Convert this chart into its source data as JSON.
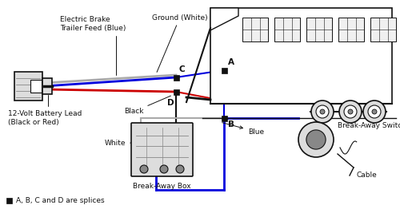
{
  "background_color": "#ffffff",
  "colors": {
    "blue": "#0000dd",
    "red": "#cc0000",
    "black": "#111111",
    "gray": "#888888",
    "light_gray": "#dddddd",
    "white_wire": "#aaaaaa"
  },
  "labels": {
    "electric_brake": "Electric Brake\nTrailer Feed (Blue)",
    "ground": "Ground (White)",
    "battery_lead": "12-Volt Battery Lead\n(Black or Red)",
    "black_wire": "Black",
    "white_wire": "White",
    "blue_mid": "Blue",
    "blue_bot": "Blue",
    "splice_note": "■  A, B, C and D are splices",
    "breakaway_box": "Break-Away Box",
    "breakaway_switch": "Break-Away Switch",
    "cable": "Cable",
    "A": "A",
    "B": "B",
    "C": "C",
    "D": "D"
  },
  "fs": 6.5,
  "fs_note": 6.5,
  "fs_splice": 7.5
}
